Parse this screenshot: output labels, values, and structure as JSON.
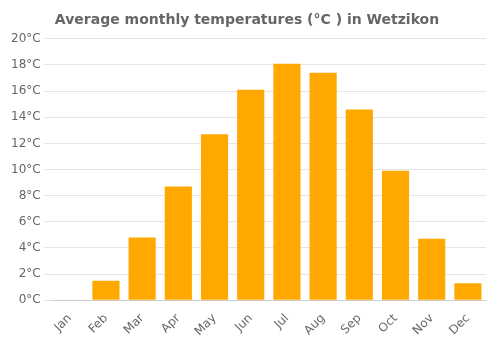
{
  "chart_data": {
    "type": "bar",
    "title": "Average monthly temperatures (°C ) in Wetzikon",
    "categories": [
      "Jan",
      "Feb",
      "Mar",
      "Apr",
      "May",
      "Jun",
      "Jul",
      "Aug",
      "Sep",
      "Oct",
      "Nov",
      "Dec"
    ],
    "values": [
      0.0,
      1.5,
      4.8,
      8.7,
      12.7,
      16.1,
      18.1,
      17.4,
      14.6,
      9.9,
      4.7,
      1.3
    ],
    "color": "#FFA800",
    "ylim": [
      0,
      20
    ],
    "yticks": [
      {
        "value": 0,
        "label": "0°C"
      },
      {
        "value": 2,
        "label": "2°C"
      },
      {
        "value": 4,
        "label": "4°C"
      },
      {
        "value": 6,
        "label": "6°C"
      },
      {
        "value": 8,
        "label": "8°C"
      },
      {
        "value": 10,
        "label": "10°C"
      },
      {
        "value": 12,
        "label": "12°C"
      },
      {
        "value": 14,
        "label": "14°C"
      },
      {
        "value": 16,
        "label": "16°C"
      },
      {
        "value": 18,
        "label": "18°C"
      },
      {
        "value": 20,
        "label": "20°C"
      }
    ],
    "grid": true
  }
}
